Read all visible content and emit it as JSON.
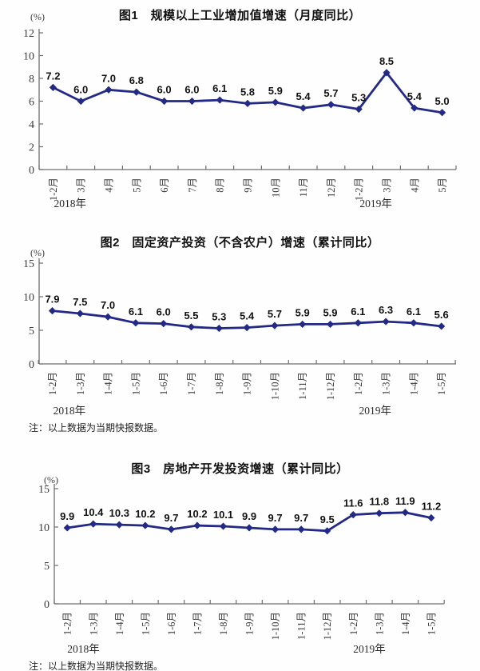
{
  "page": {
    "background": "#fefefe",
    "accent_line_color": "#232A85",
    "axis_color": "#6e6e6e",
    "text_color": "#222222"
  },
  "chart_data": [
    {
      "type": "line",
      "title": "图1　规模以上工业增加值增速（月度同比）",
      "ylabel": "(%)",
      "xlabel": "",
      "categories": [
        "1-2月",
        "3月",
        "4月",
        "5月",
        "6月",
        "7月",
        "8月",
        "9月",
        "10月",
        "11月",
        "12月",
        "1-2月",
        "3月",
        "4月",
        "5月"
      ],
      "values": [
        7.2,
        6.0,
        7.0,
        6.8,
        6.0,
        6.0,
        6.1,
        5.8,
        5.9,
        5.4,
        5.7,
        5.3,
        8.5,
        5.4,
        5.0
      ],
      "ylim": [
        0,
        12
      ],
      "yticks": [
        0,
        2,
        4,
        6,
        8,
        10,
        12
      ],
      "grid": false,
      "legend": "none",
      "line_color": "#232A85",
      "year_labels": [
        {
          "text": "2018年",
          "category_index": 0
        },
        {
          "text": "2019年",
          "category_index": 11
        }
      ],
      "note": ""
    },
    {
      "type": "line",
      "title": "图2　固定资产投资（不含农户）增速（累计同比）",
      "ylabel": "(%)",
      "xlabel": "",
      "categories": [
        "1-2月",
        "1-3月",
        "1-4月",
        "1-5月",
        "1-6月",
        "1-7月",
        "1-8月",
        "1-9月",
        "1-10月",
        "1-11月",
        "1-12月",
        "1-2月",
        "1-3月",
        "1-4月",
        "1-5月"
      ],
      "values": [
        7.9,
        7.5,
        7.0,
        6.1,
        6.0,
        5.5,
        5.3,
        5.4,
        5.7,
        5.9,
        5.9,
        6.1,
        6.3,
        6.1,
        5.6
      ],
      "ylim": [
        0,
        15
      ],
      "yticks": [
        0,
        5,
        10,
        15
      ],
      "grid": false,
      "legend": "none",
      "line_color": "#232A85",
      "year_labels": [
        {
          "text": "2018年",
          "category_index": 0
        },
        {
          "text": "2019年",
          "category_index": 11
        }
      ],
      "note": "注：以上数据为当期快报数据。"
    },
    {
      "type": "line",
      "title": "图3　房地产开发投资增速（累计同比）",
      "ylabel": "(%)",
      "xlabel": "",
      "categories": [
        "1-2月",
        "1-3月",
        "1-4月",
        "1-5月",
        "1-6月",
        "1-7月",
        "1-8月",
        "1-9月",
        "1-10月",
        "1-11月",
        "1-12月",
        "1-2月",
        "1-3月",
        "1-4月",
        "1-5月"
      ],
      "values": [
        9.9,
        10.4,
        10.3,
        10.2,
        9.7,
        10.2,
        10.1,
        9.9,
        9.7,
        9.7,
        9.5,
        11.6,
        11.8,
        11.9,
        11.2
      ],
      "ylim": [
        0,
        15
      ],
      "yticks": [
        0,
        5,
        10,
        15
      ],
      "grid": false,
      "legend": "none",
      "line_color": "#232A85",
      "year_labels": [
        {
          "text": "2018年",
          "category_index": 0
        },
        {
          "text": "2019年",
          "category_index": 11
        }
      ],
      "note": "注：以上数据为当期快报数据。"
    }
  ]
}
